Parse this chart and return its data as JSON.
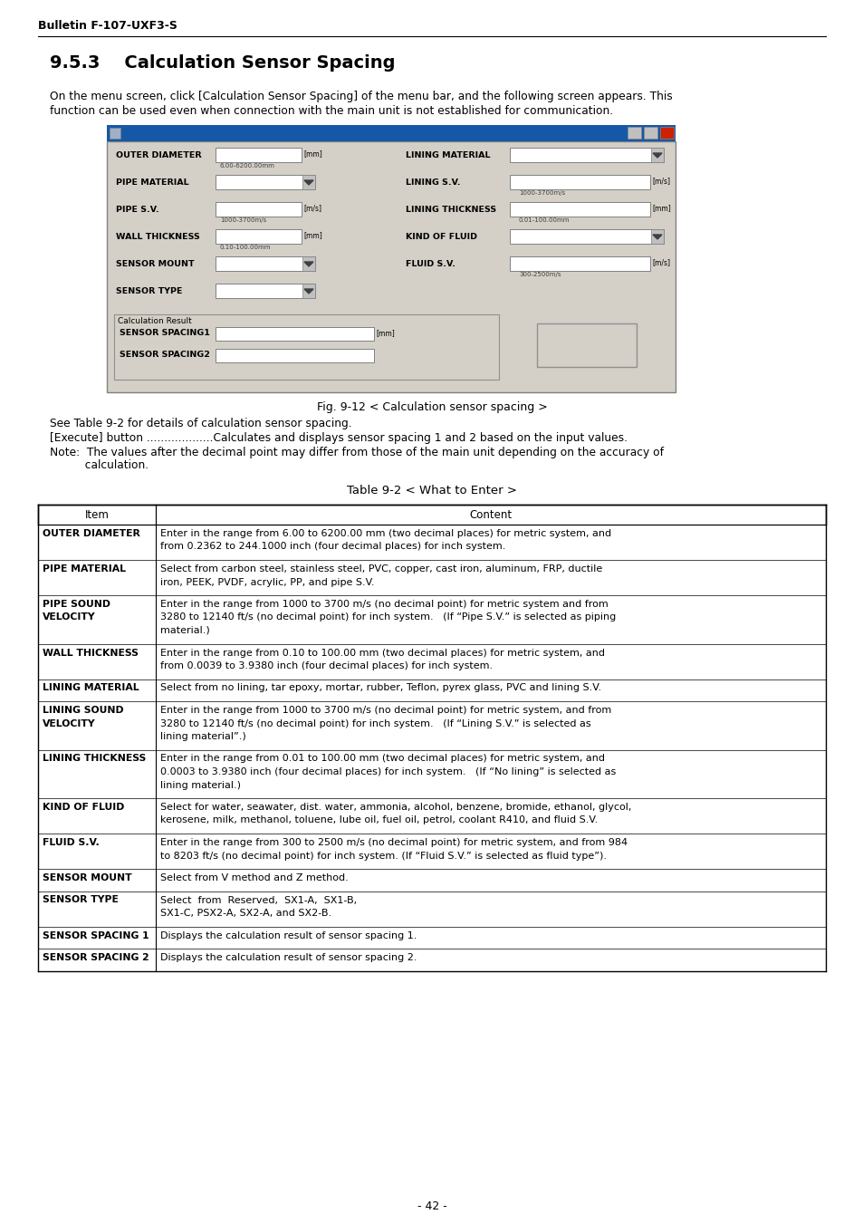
{
  "page_header": "Bulletin F-107-UXF3-S",
  "section_title": "9.5.3    Calculation Sensor Spacing",
  "paragraph1_line1": "On the menu screen, click [Calculation Sensor Spacing] of the menu bar, and the following screen appears. This",
  "paragraph1_line2": "function can be used even when connection with the main unit is not established for communication.",
  "fig_caption": "Fig. 9-12 < Calculation sensor spacing >",
  "see_table": "See Table 9-2 for details of calculation sensor spacing.",
  "execute_line1": "[Execute] button ...................Calculates and displays sensor spacing 1 and 2 based on the input values.",
  "note_line1": "Note:  The values after the decimal point may differ from those of the main unit depending on the accuracy of",
  "note_line2": "          calculation.",
  "table_title": "Table 9-2 < What to Enter >",
  "table_rows": [
    [
      "OUTER DIAMETER",
      "Enter in the range from 6.00 to 6200.00 mm (two decimal places) for metric system, and\nfrom 0.2362 to 244.1000 inch (four decimal places) for inch system."
    ],
    [
      "PIPE MATERIAL",
      "Select from carbon steel, stainless steel, PVC, copper, cast iron, aluminum, FRP, ductile\niron, PEEK, PVDF, acrylic, PP, and pipe S.V."
    ],
    [
      "PIPE SOUND\nVELOCITY",
      "Enter in the range from 1000 to 3700 m/s (no decimal point) for metric system and from\n3280 to 12140 ft/s (no decimal point) for inch system.   (If “Pipe S.V.” is selected as piping\nmaterial.)"
    ],
    [
      "WALL THICKNESS",
      "Enter in the range from 0.10 to 100.00 mm (two decimal places) for metric system, and\nfrom 0.0039 to 3.9380 inch (four decimal places) for inch system."
    ],
    [
      "LINING MATERIAL",
      "Select from no lining, tar epoxy, mortar, rubber, Teflon, pyrex glass, PVC and lining S.V."
    ],
    [
      "LINING SOUND\nVELOCITY",
      "Enter in the range from 1000 to 3700 m/s (no decimal point) for metric system, and from\n3280 to 12140 ft/s (no decimal point) for inch system.   (If “Lining S.V.” is selected as\nlining material”.)"
    ],
    [
      "LINING THICKNESS",
      "Enter in the range from 0.01 to 100.00 mm (two decimal places) for metric system, and\n0.0003 to 3.9380 inch (four decimal places) for inch system.   (If “No lining” is selected as\nlining material.)"
    ],
    [
      "KIND OF FLUID",
      "Select for water, seawater, dist. water, ammonia, alcohol, benzene, bromide, ethanol, glycol,\nkerosene, milk, methanol, toluene, lube oil, fuel oil, petrol, coolant R410, and fluid S.V."
    ],
    [
      "FLUID S.V.",
      "Enter in the range from 300 to 2500 m/s (no decimal point) for metric system, and from 984\nto 8203 ft/s (no decimal point) for inch system. (If “Fluid S.V.” is selected as fluid type”)."
    ],
    [
      "SENSOR MOUNT",
      "Select from V method and Z method."
    ],
    [
      "SENSOR TYPE",
      "Select  from  Reserved,  SX1-A,  SX1-B,\nSX1-C, PSX2-A, SX2-A, and SX2-B."
    ],
    [
      "SENSOR SPACING 1",
      "Displays the calculation result of sensor spacing 1."
    ],
    [
      "SENSOR SPACING 2",
      "Displays the calculation result of sensor spacing 2."
    ]
  ],
  "page_number": "- 42 -"
}
